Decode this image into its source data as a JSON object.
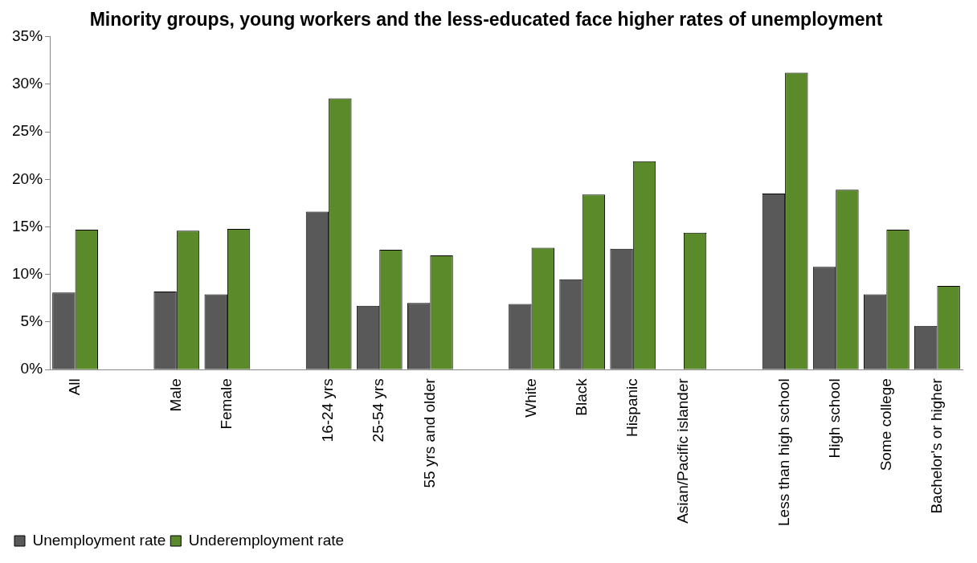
{
  "chart_data": {
    "type": "bar",
    "title": "Minority groups, young workers and the less-educated face higher rates of unemployment",
    "categories": [
      "All",
      null,
      "Male",
      "Female",
      null,
      "16-24 yrs",
      "25-54 yrs",
      "55 yrs and older",
      null,
      "White",
      "Black",
      "Hispanic",
      "Asian/Pacific islander",
      null,
      "Less than high school",
      "High school",
      "Some college",
      "Bachelor's or higher"
    ],
    "series": [
      {
        "name": "Unemployment rate",
        "color": "#595959",
        "values": [
          8.1,
          null,
          8.2,
          7.9,
          null,
          16.6,
          6.7,
          7.0,
          null,
          6.9,
          9.5,
          12.7,
          null,
          null,
          18.5,
          10.8,
          7.9,
          4.6
        ]
      },
      {
        "name": "Underemployment rate",
        "color": "#5b8a2b",
        "values": [
          14.7,
          null,
          14.6,
          14.8,
          null,
          28.5,
          12.6,
          12.0,
          null,
          12.8,
          18.4,
          21.9,
          14.4,
          null,
          31.2,
          18.9,
          14.7,
          8.8
        ]
      }
    ],
    "ylim": [
      0,
      35
    ],
    "yticks": [
      {
        "value": 0,
        "label": "0%"
      },
      {
        "value": 5,
        "label": "5%"
      },
      {
        "value": 10,
        "label": "10%"
      },
      {
        "value": 15,
        "label": "15%"
      },
      {
        "value": 20,
        "label": "20%"
      },
      {
        "value": 25,
        "label": "25%"
      },
      {
        "value": 30,
        "label": "30%"
      },
      {
        "value": 35,
        "label": "35%"
      }
    ],
    "grid": false,
    "legend": "bottom left"
  }
}
